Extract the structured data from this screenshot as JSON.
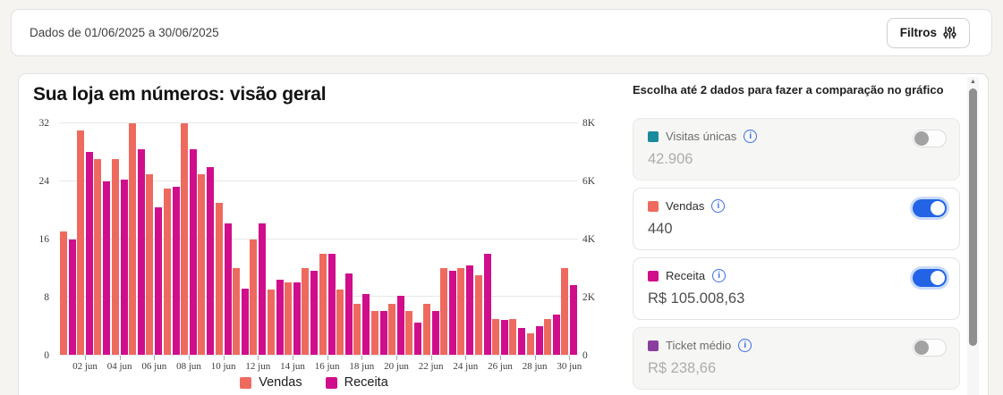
{
  "top_bar": {
    "date_range": "Dados de 01/06/2025 a 30/06/2025",
    "filters_label": "Filtros"
  },
  "overview": {
    "title": "Sua loja em números: visão geral"
  },
  "comparison": {
    "header": "Escolha até 2 dados para fazer a comparação no gráfico",
    "metrics": [
      {
        "id": "visitas-unicas",
        "label": "Visitas únicas",
        "value": "42.906",
        "color": "#1a8a9d",
        "enabled": false
      },
      {
        "id": "vendas",
        "label": "Vendas",
        "value": "440",
        "color": "#ee6a5f",
        "enabled": true
      },
      {
        "id": "receita",
        "label": "Receita",
        "value": "R$ 105.008,63",
        "color": "#d00e8c",
        "enabled": true
      },
      {
        "id": "ticket-medio",
        "label": "Ticket médio",
        "value": "R$ 238,66",
        "color": "#8b3d9e",
        "enabled": false
      }
    ]
  },
  "chart_data": {
    "type": "bar",
    "title": "Sua loja em números: visão geral",
    "categories": [
      "01 jun",
      "02 jun",
      "03 jun",
      "04 jun",
      "05 jun",
      "06 jun",
      "07 jun",
      "08 jun",
      "09 jun",
      "10 jun",
      "11 jun",
      "12 jun",
      "13 jun",
      "14 jun",
      "15 jun",
      "16 jun",
      "17 jun",
      "18 jun",
      "19 jun",
      "20 jun",
      "21 jun",
      "22 jun",
      "23 jun",
      "24 jun",
      "25 jun",
      "26 jun",
      "27 jun",
      "28 jun",
      "29 jun",
      "30 jun"
    ],
    "series": [
      {
        "name": "Vendas",
        "axis": "left",
        "color": "#ee6a5f",
        "values": [
          17,
          31,
          27,
          27,
          32,
          25,
          23,
          32,
          25,
          21,
          12,
          16,
          9,
          10,
          12,
          14,
          9,
          7,
          6,
          7,
          6,
          7,
          12,
          12,
          11,
          5,
          5,
          3,
          5,
          12
        ]
      },
      {
        "name": "Receita",
        "axis": "right",
        "color": "#d00e8c",
        "values": [
          4000,
          7000,
          6000,
          6050,
          7100,
          5100,
          5800,
          7100,
          6500,
          4550,
          2300,
          4550,
          2600,
          2500,
          2900,
          3500,
          2800,
          2100,
          1500,
          2050,
          1100,
          1500,
          2900,
          3100,
          3500,
          1200,
          920,
          1000,
          1400,
          2400
        ]
      }
    ],
    "left_axis": {
      "ticks": [
        0,
        8,
        16,
        24,
        32
      ],
      "min": 0,
      "max": 32
    },
    "right_axis": {
      "ticks": [
        "0",
        "2K",
        "4K",
        "6K",
        "8K"
      ],
      "tick_values": [
        0,
        2000,
        4000,
        6000,
        8000
      ],
      "min": 0,
      "max": 8000
    },
    "x_tick_labels": [
      "02 jun",
      "04 jun",
      "06 jun",
      "08 jun",
      "10 jun",
      "12 jun",
      "14 jun",
      "16 jun",
      "18 jun",
      "20 jun",
      "22 jun",
      "24 jun",
      "26 jun",
      "28 jun",
      "30 jun"
    ],
    "legend": [
      "Vendas",
      "Receita"
    ],
    "legend_position": "bottom",
    "grid": true
  }
}
